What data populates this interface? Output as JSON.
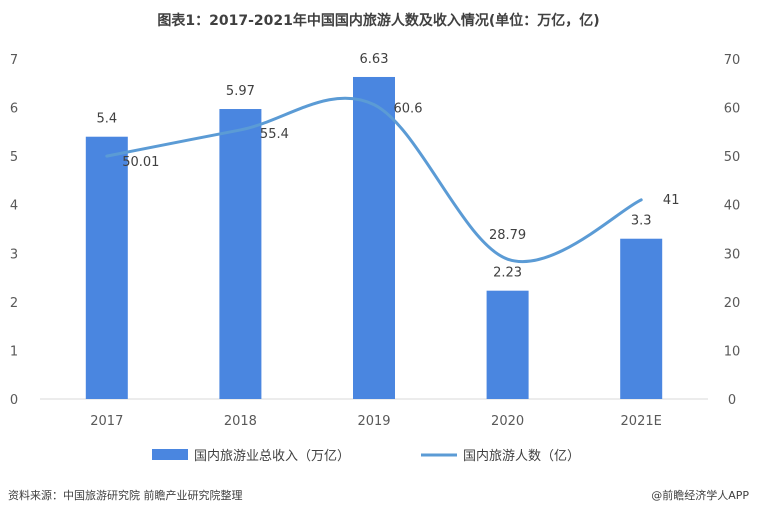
{
  "title": "图表1：2017-2021年中国国内旅游人数及收入情况(单位：万亿，亿)",
  "source": "资料来源：中国旅游研究院 前瞻产业研究院整理",
  "credit": "@前瞻经济学人APP",
  "colors": {
    "bar": "#4a86e0",
    "line": "#5b9bd5",
    "axis": "#d9d9d9",
    "text": "#595959"
  },
  "chart_data": {
    "type": "bar+line",
    "categories": [
      "2017",
      "2018",
      "2019",
      "2020",
      "2021E"
    ],
    "series": [
      {
        "name": "国内旅游业总收入（万亿）",
        "type": "bar",
        "axis": "left",
        "values": [
          5.4,
          5.97,
          6.63,
          2.23,
          3.3
        ],
        "labels": [
          "5.4",
          "5.97",
          "6.63",
          "2.23",
          "3.3"
        ]
      },
      {
        "name": "国内旅游人数（亿）",
        "type": "line",
        "axis": "right",
        "smooth": true,
        "values": [
          50.01,
          55.4,
          60.6,
          28.79,
          41
        ],
        "labels": [
          "50.01",
          "55.4",
          "60.6",
          "28.79",
          "41"
        ]
      }
    ],
    "y_left": {
      "min": 0,
      "max": 7,
      "ticks": [
        "0",
        "1",
        "2",
        "3",
        "4",
        "5",
        "6",
        "7"
      ]
    },
    "y_right": {
      "min": 0,
      "max": 70,
      "ticks": [
        "0",
        "10",
        "20",
        "30",
        "40",
        "50",
        "60",
        "70"
      ]
    },
    "grid": false,
    "legend": "bottom"
  }
}
